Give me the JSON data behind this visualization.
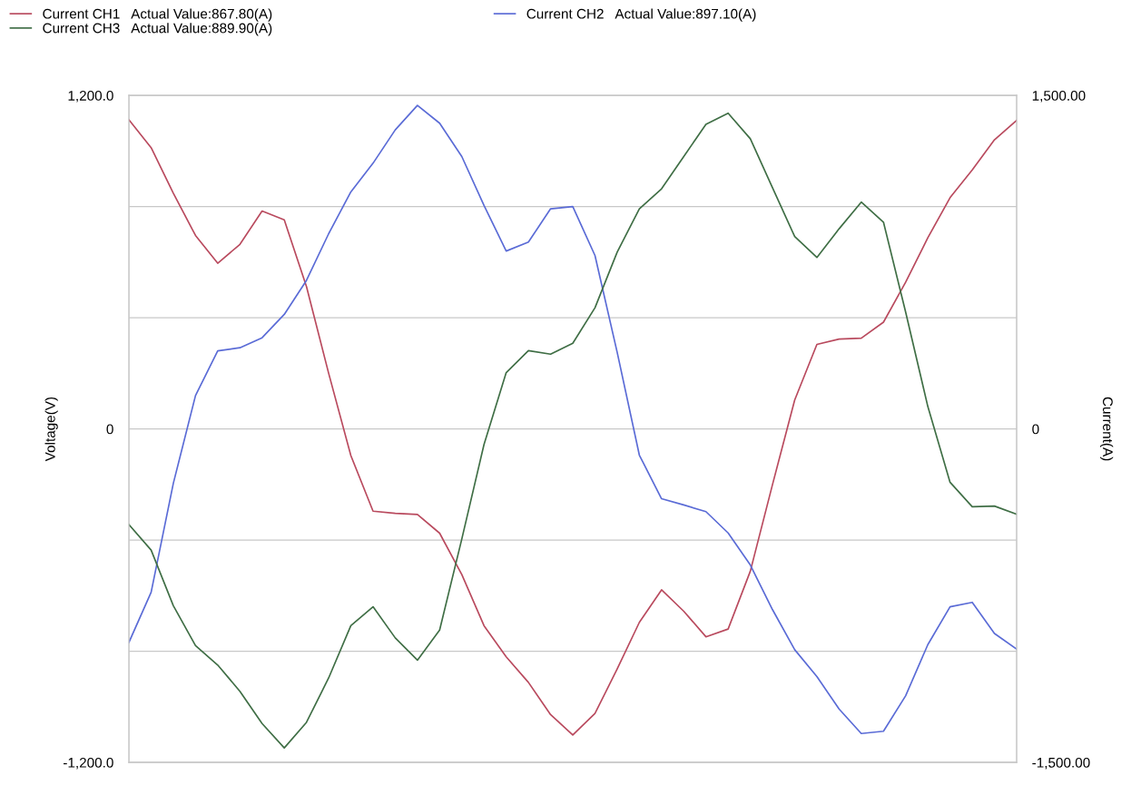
{
  "chart_data": {
    "type": "line",
    "ylabel": "Voltage(V)",
    "y2label": "Current(A)",
    "categories": [
      null,
      null,
      null,
      null,
      null,
      null,
      null,
      null,
      null,
      null,
      null,
      null,
      null,
      null,
      null,
      null,
      null,
      null,
      null,
      null,
      null,
      null,
      null,
      null,
      null,
      null,
      null,
      null,
      null,
      null,
      null,
      null,
      null,
      null,
      null,
      null,
      null,
      null,
      null,
      null,
      null
    ],
    "ylim": [
      -1200,
      1200
    ],
    "yticks": [
      {
        "value": 1200,
        "label": "1,200.0"
      },
      {
        "value": 800,
        "label": null
      },
      {
        "value": 400,
        "label": null
      },
      0,
      {
        "value": -400,
        "label": null
      },
      {
        "value": -800,
        "label": null
      },
      {
        "value": -1200,
        "label": "-1,200.0"
      }
    ],
    "y2lim": [
      -1500,
      1500
    ],
    "y2ticks": [
      {
        "value": 1500,
        "label": "1,500.00"
      },
      0,
      {
        "value": -1500,
        "label": "-1,500.00"
      }
    ],
    "grid": "y",
    "legend": "top",
    "line_style": "solid",
    "marker": "none",
    "series": [
      {
        "name": "Current CH1   Actual Value:867.80(A)",
        "color": "#b94a5e",
        "axis": "y2",
        "values": [
          1390,
          1265,
          1060,
          870,
          745,
          830,
          980,
          940,
          640,
          250,
          -120,
          -370,
          -380,
          -385,
          -469,
          -655,
          -885,
          -1025,
          -1140,
          -1285,
          -1377,
          -1280,
          -1080,
          -870,
          -724,
          -820,
          -935,
          -900,
          -640,
          -250,
          130,
          380,
          404,
          408,
          480,
          660,
          860,
          1040,
          1165,
          1300,
          1388
        ]
      },
      {
        "name": "Current CH2   Actual Value:897.10(A)",
        "color": "#5a6bd6",
        "axis": "y2",
        "values": [
          -960,
          -735,
          -245,
          150,
          351,
          365,
          410,
          515,
          668,
          878,
          1066,
          1195,
          1345,
          1455,
          1375,
          1225,
          1005,
          800,
          840,
          990,
          1000,
          780,
          345,
          -118,
          -314,
          -342,
          -372,
          -468,
          -612,
          -813,
          -993,
          -1114,
          -1260,
          -1370,
          -1360,
          -1200,
          -970,
          -800,
          -780,
          -920,
          -990
        ]
      },
      {
        "name": "Current CH3   Actual Value:889.90(A)",
        "color": "#3f6e45",
        "axis": "y2",
        "values": [
          -430,
          -545,
          -795,
          -975,
          -1062,
          -1180,
          -1325,
          -1435,
          -1320,
          -1120,
          -885,
          -800,
          -940,
          -1040,
          -905,
          -495,
          -70,
          253,
          352,
          336,
          385,
          545,
          795,
          990,
          1080,
          1225,
          1370,
          1420,
          1305,
          1085,
          865,
          771,
          900,
          1020,
          930,
          525,
          100,
          -240,
          -350,
          -347,
          -384
        ]
      }
    ]
  }
}
